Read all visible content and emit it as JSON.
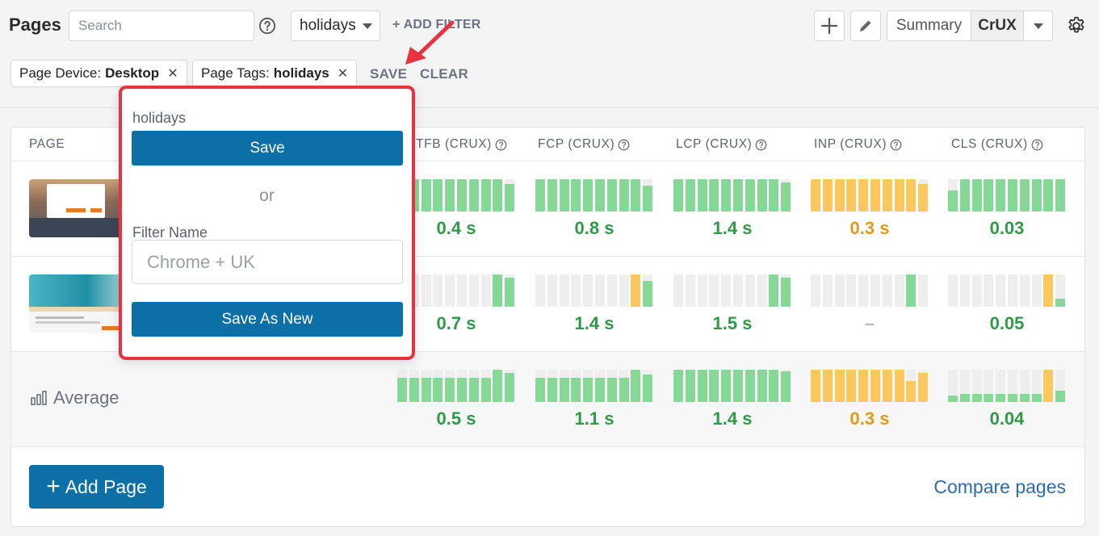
{
  "header": {
    "title": "Pages",
    "search_placeholder": "Search",
    "selected_filter": "holidays",
    "add_filter_label": "+ ADD FILTER",
    "view_summary": "Summary",
    "view_crux": "CrUX"
  },
  "filters": {
    "chips": [
      {
        "label": "Page Device:",
        "value": "Desktop"
      },
      {
        "label": "Page Tags:",
        "value": "holidays"
      }
    ],
    "save_label": "SAVE",
    "clear_label": "CLEAR"
  },
  "table": {
    "columns": [
      "PAGE",
      "TTFB (CRUX)",
      "FCP (CRUX)",
      "LCP (CRUX)",
      "INP (CRUX)",
      "CLS (CRUX)"
    ],
    "rows": [
      {
        "type": "page",
        "values": [
          "0.4 s",
          "0.8 s",
          "1.4 s",
          "0.3 s",
          "0.03"
        ]
      },
      {
        "type": "page",
        "values": [
          "0.7 s",
          "1.4 s",
          "1.5 s",
          "–",
          "0.05"
        ]
      },
      {
        "type": "average",
        "label": "Average",
        "values": [
          "0.5 s",
          "1.1 s",
          "1.4 s",
          "0.3 s",
          "0.04"
        ]
      }
    ]
  },
  "bars": [
    [
      {
        "color": "green",
        "levels": [
          1,
          1,
          1,
          1,
          1,
          1,
          1,
          1,
          1,
          0.85
        ]
      },
      {
        "color": "green",
        "levels": [
          1,
          1,
          1,
          1,
          1,
          1,
          1,
          1,
          1,
          0.8
        ]
      },
      {
        "color": "green",
        "levels": [
          1,
          1,
          1,
          1,
          1,
          1,
          1,
          1,
          1,
          0.9
        ]
      },
      {
        "color": "orange",
        "levels": [
          1,
          1,
          1,
          1,
          1,
          1,
          1,
          1,
          1,
          0.85
        ]
      },
      {
        "color": "green",
        "levels": [
          0.65,
          1,
          1,
          1,
          1,
          1,
          1,
          1,
          1,
          1
        ]
      }
    ],
    [
      {
        "color": "green",
        "levels": [
          0,
          0,
          0,
          0,
          0,
          0,
          0,
          0,
          1,
          0.9
        ],
        "barcolors": [
          "",
          "",
          "",
          "",
          "",
          "",
          "",
          "",
          "g",
          "g"
        ]
      },
      {
        "color": "mixed",
        "levels": [
          0,
          0,
          0,
          0,
          0,
          0,
          0,
          0,
          1,
          0.8
        ],
        "barcolors": [
          "",
          "",
          "",
          "",
          "",
          "",
          "",
          "",
          "o",
          "g"
        ]
      },
      {
        "color": "green",
        "levels": [
          0,
          0,
          0,
          0,
          0,
          0,
          0,
          0,
          1,
          0.9
        ]
      },
      {
        "color": "green",
        "levels": [
          0,
          0,
          0,
          0,
          0,
          0,
          0,
          0,
          1,
          0
        ]
      },
      {
        "color": "mixed",
        "levels": [
          0,
          0,
          0,
          0,
          0,
          0,
          0,
          0,
          1,
          0.25
        ],
        "barcolors": [
          "",
          "",
          "",
          "",
          "",
          "",
          "",
          "",
          "o",
          "g"
        ]
      }
    ],
    [
      {
        "color": "green",
        "levels": [
          0.75,
          0.75,
          0.75,
          0.75,
          0.75,
          0.75,
          0.75,
          0.75,
          1,
          0.9
        ]
      },
      {
        "color": "green",
        "levels": [
          0.75,
          0.75,
          0.75,
          0.75,
          0.75,
          0.75,
          0.75,
          0.75,
          1,
          0.85
        ]
      },
      {
        "color": "green",
        "levels": [
          1,
          1,
          1,
          1,
          1,
          1,
          1,
          1,
          1,
          0.95
        ]
      },
      {
        "color": "mixed",
        "levels": [
          1,
          1,
          1,
          1,
          1,
          1,
          1,
          1,
          0.65,
          0.9
        ],
        "barcolors": [
          "o",
          "o",
          "o",
          "o",
          "o",
          "o",
          "o",
          "o",
          "o",
          "o"
        ]
      },
      {
        "color": "mixed",
        "levels": [
          0.2,
          0.25,
          0.25,
          0.25,
          0.25,
          0.25,
          0.25,
          0.25,
          1,
          0.35
        ],
        "barcolors": [
          "g",
          "g",
          "g",
          "g",
          "g",
          "g",
          "g",
          "g",
          "o",
          "g"
        ]
      }
    ]
  ],
  "value_colors": [
    [
      "green",
      "green",
      "green",
      "orange",
      "green"
    ],
    [
      "green",
      "green",
      "green",
      "dash",
      "green"
    ],
    [
      "green",
      "green",
      "green",
      "orange",
      "green"
    ]
  ],
  "actions": {
    "add_page": "Add Page",
    "compare": "Compare pages"
  },
  "popover": {
    "filter_name": "holidays",
    "save_button": "Save",
    "or_text": "or",
    "name_label": "Filter Name",
    "name_placeholder": "Chrome + UK",
    "save_as_new_button": "Save As New"
  },
  "colors": {
    "green": "#86d896",
    "orange": "#fcc75d",
    "value_green": "#2f9a48",
    "value_orange": "#e09a1a",
    "accent": "#0c6fa6",
    "highlight": "#e8323f"
  }
}
